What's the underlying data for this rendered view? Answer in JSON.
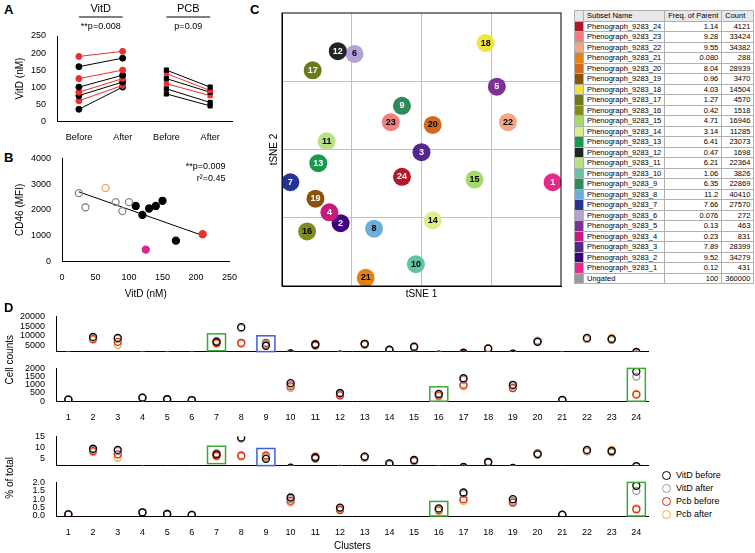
{
  "chart_data": [
    {
      "panel": "A",
      "type": "line",
      "y_label": "VitD (nM)",
      "categories": [
        "Before",
        "After",
        "Before",
        "After"
      ],
      "groups": [
        {
          "name": "VitD",
          "annotation": "**p=0.008"
        },
        {
          "name": "PCB",
          "annotation": "p=0.09"
        }
      ],
      "ylim": [
        0,
        250
      ],
      "yticks": [
        0,
        50,
        100,
        150,
        200,
        250
      ],
      "grid": false,
      "series": [
        {
          "color": "#e8312f",
          "marker": "circle",
          "values": [
            190,
            205,
            null,
            null
          ]
        },
        {
          "color": "#000000",
          "marker": "circle",
          "values": [
            160,
            185,
            null,
            null
          ]
        },
        {
          "color": "#e8312f",
          "marker": "circle",
          "values": [
            125,
            150,
            null,
            null
          ]
        },
        {
          "color": "#000000",
          "marker": "circle",
          "values": [
            100,
            135,
            null,
            null
          ]
        },
        {
          "color": "#e8312f",
          "marker": "circle",
          "values": [
            85,
            125,
            null,
            null
          ]
        },
        {
          "color": "#000000",
          "marker": "circle",
          "values": [
            75,
            115,
            null,
            null
          ]
        },
        {
          "color": "#e8312f",
          "marker": "circle",
          "values": [
            60,
            105,
            null,
            null
          ]
        },
        {
          "color": "#000000",
          "marker": "circle",
          "values": [
            35,
            100,
            null,
            null
          ]
        },
        {
          "color": "#000000",
          "marker": "square",
          "values": [
            null,
            null,
            150,
            100
          ]
        },
        {
          "color": "#e8312f",
          "marker": "square",
          "values": [
            null,
            null,
            140,
            90
          ]
        },
        {
          "color": "#000000",
          "marker": "square",
          "values": [
            null,
            null,
            125,
            85
          ]
        },
        {
          "color": "#e8312f",
          "marker": "square",
          "values": [
            null,
            null,
            110,
            75
          ]
        },
        {
          "color": "#000000",
          "marker": "square",
          "values": [
            null,
            null,
            95,
            55
          ]
        },
        {
          "color": "#000000",
          "marker": "square",
          "values": [
            null,
            null,
            80,
            45
          ]
        }
      ]
    },
    {
      "panel": "B",
      "type": "scatter",
      "x_label": "VitD (nM)",
      "y_label": "CD46 (MFI)",
      "annotations": [
        "**p=0.009",
        "r²=0.45"
      ],
      "xlim": [
        0,
        250
      ],
      "xticks": [
        0,
        50,
        100,
        150,
        200,
        250
      ],
      "ylim": [
        0,
        4000
      ],
      "yticks": [
        0,
        1000,
        2000,
        3000,
        4000
      ],
      "grid": false,
      "series": [
        {
          "marker": "circle-open",
          "colors": [
            "#888888",
            "#888888",
            "#f4a460",
            "#888888",
            "#888888",
            "#888888"
          ],
          "x": [
            25,
            35,
            65,
            80,
            90,
            100
          ],
          "values": [
            2650,
            2100,
            2850,
            2300,
            1950,
            2300
          ]
        },
        {
          "marker": "circle",
          "colors": [
            "#000000",
            "#000000",
            "#000000",
            "#000000",
            "#000000",
            "#e0219a",
            "#000000",
            "#e8312f"
          ],
          "x": [
            110,
            120,
            130,
            140,
            150,
            125,
            170,
            210
          ],
          "values": [
            2150,
            1800,
            2050,
            2150,
            2350,
            450,
            800,
            1050
          ]
        },
        {
          "type": "line",
          "color": "#000000",
          "x": [
            25,
            210
          ],
          "values": [
            2700,
            1000
          ]
        }
      ]
    },
    {
      "panel": "C",
      "type": "scatter",
      "x_label": "tSNE 1",
      "y_label": "tSNE 2",
      "xlim": [
        0,
        100
      ],
      "xticks": [
        25,
        50,
        75
      ],
      "ylim": [
        0,
        100
      ],
      "yticks": [
        25,
        50,
        75
      ],
      "grid": true,
      "tick_labels": false,
      "series": [
        {
          "marker": "circle",
          "point_labels": [
            "1",
            "2",
            "3",
            "4",
            "5",
            "6",
            "7",
            "8",
            "9",
            "10",
            "11",
            "12",
            "13",
            "14",
            "15",
            "16",
            "17",
            "18",
            "19",
            "20",
            "21",
            "22",
            "23",
            "24"
          ],
          "x": [
            97,
            21,
            50,
            17,
            77,
            26,
            3,
            33,
            43,
            48,
            16,
            20,
            13,
            54,
            69,
            9,
            11,
            73,
            12,
            54,
            30,
            81,
            39,
            43
          ],
          "values": [
            38,
            23,
            49,
            27,
            73,
            85,
            38,
            21,
            66,
            8,
            53,
            86,
            45,
            24,
            39,
            20,
            79,
            89,
            32,
            59,
            3,
            60,
            60,
            40
          ],
          "colors": [
            "#e7298a",
            "#3f007d",
            "#54278f",
            "#c51b7d",
            "#7b3294",
            "#b3a2d6",
            "#253494",
            "#6baed6",
            "#2e8b57",
            "#66c2a5",
            "#b8e186",
            "#222222",
            "#1a9850",
            "#d9ef8b",
            "#a6d96a",
            "#7f8c1f",
            "#6b7a1a",
            "#f0e442",
            "#8c510a",
            "#d2691e",
            "#e08214",
            "#f4a582",
            "#f08080",
            "#b2182b"
          ]
        }
      ]
    },
    {
      "panel": "D",
      "type": "scatter",
      "y_label": "Cell counts",
      "legend": "right",
      "categories": [
        1,
        2,
        3,
        4,
        5,
        6,
        7,
        8,
        9,
        10,
        11,
        12,
        13,
        14,
        15,
        16,
        17,
        18,
        19,
        20,
        21,
        22,
        23,
        24
      ],
      "y_segments": [
        {
          "ylim": [
            2000,
            20000
          ],
          "yticks": [
            5000,
            10000,
            15000,
            20000
          ]
        },
        {
          "ylim": [
            0,
            2000
          ],
          "yticks": [
            0,
            500,
            1000,
            1500,
            2000
          ]
        }
      ],
      "highlights": [
        {
          "cluster": 7,
          "color": "#3aa935"
        },
        {
          "cluster": 9,
          "color": "#4060d0"
        },
        {
          "cluster": 16,
          "color": "#3aa935"
        },
        {
          "cluster": 24,
          "color": "#3aa935"
        }
      ],
      "series": [
        {
          "name": "VitD before",
          "color": "#000000",
          "marker": "circle-open",
          "values": [
            100,
            9500,
            9000,
            220,
            120,
            70,
            7000,
            14500,
            5000,
            1100,
            5500,
            500,
            6000,
            3000,
            4500,
            450,
            1400,
            3500,
            1000,
            7000,
            80,
            9000,
            8500,
            1800
          ]
        },
        {
          "name": "VitD after",
          "color": "#999999",
          "marker": "circle-open",
          "values": [
            110,
            9000,
            8500,
            200,
            110,
            60,
            7500,
            14000,
            6000,
            1000,
            5000,
            450,
            5500,
            2500,
            4000,
            400,
            1300,
            3800,
            900,
            7500,
            70,
            8500,
            8000,
            1500
          ]
        },
        {
          "name": "Pcb before",
          "color": "#e02020",
          "marker": "circle-open",
          "values": [
            100,
            8500,
            7000,
            200,
            120,
            70,
            6500,
            6500,
            6500,
            900,
            6000,
            350,
            6000,
            2800,
            4000,
            350,
            1000,
            3500,
            800,
            7500,
            70,
            8500,
            8000,
            400
          ]
        },
        {
          "name": "Pcb after",
          "color": "#f0b030",
          "marker": "circle-open",
          "values": [
            120,
            8000,
            5500,
            210,
            110,
            70,
            6000,
            6000,
            5500,
            800,
            6000,
            400,
            5500,
            3000,
            4500,
            300,
            900,
            3700,
            800,
            7000,
            70,
            8500,
            9000,
            450
          ]
        }
      ]
    },
    {
      "type": "scatter",
      "y_label": "% of total",
      "x_label": "Clusters",
      "categories": [
        1,
        2,
        3,
        4,
        5,
        6,
        7,
        8,
        9,
        10,
        11,
        12,
        13,
        14,
        15,
        16,
        17,
        18,
        19,
        20,
        21,
        22,
        23,
        24
      ],
      "y_segments": [
        {
          "ylim": [
            2,
            15
          ],
          "yticks": [
            5,
            10,
            15
          ]
        },
        {
          "ylim": [
            0,
            2
          ],
          "yticks": [
            {
              "value": 0,
              "label": "0.0"
            },
            0.5,
            {
              "value": 1,
              "label": "1.0"
            },
            1.5,
            {
              "value": 2,
              "label": "2.0"
            }
          ]
        }
      ],
      "highlights": [
        {
          "cluster": 7,
          "color": "#3aa935"
        },
        {
          "cluster": 9,
          "color": "#4060d0"
        },
        {
          "cluster": 16,
          "color": "#3aa935"
        },
        {
          "cluster": 24,
          "color": "#3aa935"
        }
      ],
      "series": [
        {
          "color": "#000000",
          "marker": "circle-open",
          "values": [
            0.1,
            9.5,
            9,
            0.22,
            0.12,
            0.07,
            7,
            14.5,
            5,
            1.1,
            5.5,
            0.5,
            6,
            3,
            4.5,
            0.45,
            1.4,
            3.5,
            1,
            7,
            0.08,
            9,
            8.5,
            1.8
          ]
        },
        {
          "color": "#999999",
          "marker": "circle-open",
          "values": [
            0.11,
            9,
            8.5,
            0.2,
            0.11,
            0.06,
            7.5,
            14,
            6,
            1,
            5,
            0.45,
            5.5,
            2.5,
            4,
            0.4,
            1.3,
            3.8,
            0.9,
            7.5,
            0.07,
            8.5,
            8,
            1.5
          ]
        },
        {
          "color": "#e02020",
          "marker": "circle-open",
          "values": [
            0.1,
            8.5,
            7,
            0.2,
            0.12,
            0.07,
            6.5,
            6.5,
            6.5,
            0.9,
            6,
            0.35,
            6,
            2.8,
            4,
            0.35,
            1,
            3.5,
            0.8,
            7.5,
            0.07,
            8.5,
            8,
            0.4
          ]
        },
        {
          "color": "#f0b030",
          "marker": "circle-open",
          "values": [
            0.12,
            8,
            5.5,
            0.21,
            0.11,
            0.07,
            6,
            6,
            5.5,
            0.8,
            6,
            0.4,
            5.5,
            3,
            4.5,
            0.3,
            0.9,
            3.7,
            0.8,
            7,
            0.07,
            8.5,
            9,
            0.45
          ]
        }
      ]
    }
  ],
  "table": {
    "columns": [
      "Subset Name",
      "Freq. of Parent",
      "Count"
    ],
    "rows": [
      [
        "Phenograph_9283_24",
        "1.14",
        "4121"
      ],
      [
        "Phenograph_9283_23",
        "9.28",
        "33424"
      ],
      [
        "Phenograph_9283_22",
        "9.55",
        "34382"
      ],
      [
        "Phenograph_9283_21",
        "0.080",
        "288"
      ],
      [
        "Phenograph_9283_20",
        "8.04",
        "28939"
      ],
      [
        "Phenograph_9283_19",
        "0.96",
        "3470"
      ],
      [
        "Phenograph_9283_18",
        "4.03",
        "14504"
      ],
      [
        "Phenograph_9283_17",
        "1.27",
        "4570"
      ],
      [
        "Phenograph_9283_16",
        "0.42",
        "1518"
      ],
      [
        "Phenograph_9283_15",
        "4.71",
        "16946"
      ],
      [
        "Phenograph_9283_14",
        "3.14",
        "11285"
      ],
      [
        "Phenograph_9283_13",
        "6.41",
        "23073"
      ],
      [
        "Phenograph_9283_12",
        "0.47",
        "1698"
      ],
      [
        "Phenograph_9283_11",
        "6.21",
        "22364"
      ],
      [
        "Phenograph_9283_10",
        "1.06",
        "3826"
      ],
      [
        "Phenograph_9283_9",
        "6.35",
        "22869"
      ],
      [
        "Phenograph_9283_8",
        "11.2",
        "40410"
      ],
      [
        "Phenograph_9283_7",
        "7.66",
        "27570"
      ],
      [
        "Phenograph_9283_6",
        "0.076",
        "272"
      ],
      [
        "Phenograph_9283_5",
        "0.13",
        "463"
      ],
      [
        "Phenograph_9283_4",
        "0.23",
        "831"
      ],
      [
        "Phenograph_9283_3",
        "7.89",
        "28399"
      ],
      [
        "Phenograph_9283_2",
        "9.52",
        "34279"
      ],
      [
        "Phenograph_9283_1",
        "0.12",
        "431"
      ],
      [
        "Ungated",
        "100",
        "360000"
      ]
    ],
    "colors": [
      "#b2182b",
      "#f08080",
      "#f4a582",
      "#e08214",
      "#d2691e",
      "#8c510a",
      "#f0e442",
      "#6b7a1a",
      "#7f8c1f",
      "#a6d96a",
      "#d9ef8b",
      "#1a9850",
      "#222222",
      "#b8e186",
      "#66c2a5",
      "#2e8b57",
      "#6baed6",
      "#253494",
      "#b3a2d6",
      "#7b3294",
      "#c51b7d",
      "#54278f",
      "#3f007d",
      "#e7298a",
      "#999999"
    ]
  }
}
